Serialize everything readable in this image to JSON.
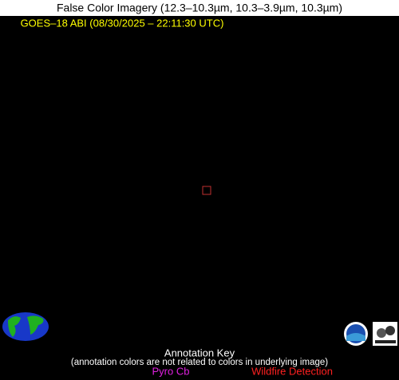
{
  "header": {
    "title": "False Color Imagery (12.3–10.3µm, 10.3–3.9µm, 10.3µm)",
    "subtitle": "GOES–18 ABI (08/30/2025 – 22:11:30 UTC)"
  },
  "annotation_key": {
    "title": "Annotation Key",
    "note": "(annotation colors are not related to colors in underlying image)",
    "items": [
      "Pyro Cb",
      "Wildfire Detection"
    ]
  }
}
